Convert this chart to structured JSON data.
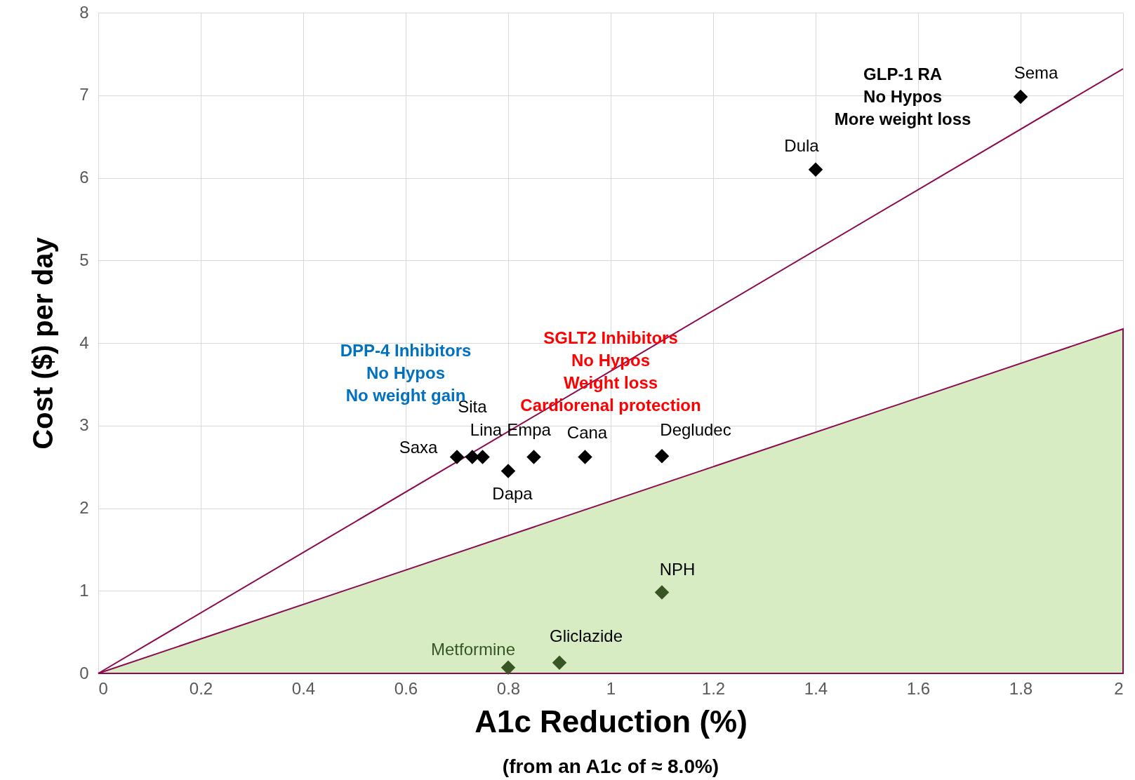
{
  "chart_data": {
    "type": "scatter",
    "xlabel": "A1c Reduction (%)",
    "ylabel": "Cost ($) per day",
    "xlim": [
      0,
      2
    ],
    "ylim": [
      0,
      8
    ],
    "xticks": [
      0,
      0.2,
      0.4,
      0.6,
      0.8,
      1,
      1.2,
      1.4,
      1.6,
      1.8,
      2
    ],
    "yticks": [
      0,
      1,
      2,
      3,
      4,
      5,
      6,
      7,
      8
    ],
    "grid": true,
    "series": [
      {
        "type": "area",
        "color": "#d8ecc4",
        "x": [
          0,
          2
        ],
        "values": [
          0,
          4.17
        ]
      },
      {
        "type": "line",
        "color": "#8b0a50",
        "x": [
          0,
          2
        ],
        "values": [
          0,
          7.32
        ]
      },
      {
        "marker": "diamond",
        "color": "#000000",
        "x": [
          1.8,
          1.4,
          0.73,
          0.75,
          0.7,
          0.85,
          0.8,
          0.95,
          1.1
        ],
        "values": [
          6.98,
          6.1,
          2.62,
          2.62,
          2.62,
          2.62,
          2.45,
          2.62,
          2.63
        ]
      },
      {
        "marker": "diamond",
        "color": "#375623",
        "x": [
          1.1,
          0.9,
          0.8
        ],
        "values": [
          0.98,
          0.13,
          0.07
        ]
      }
    ],
    "annotations": [
      {
        "text": "Sema",
        "x": 1.8,
        "y": 6.98
      },
      {
        "text": "Dula",
        "x": 1.4,
        "y": 6.1
      },
      {
        "text": "Sita",
        "x": 0.73,
        "y": 2.62
      },
      {
        "text": "Lina",
        "x": 0.75,
        "y": 2.62
      },
      {
        "text": "Saxa",
        "x": 0.7,
        "y": 2.62
      },
      {
        "text": "Empa",
        "x": 0.85,
        "y": 2.62
      },
      {
        "text": "Dapa",
        "x": 0.8,
        "y": 2.45
      },
      {
        "text": "Cana",
        "x": 0.95,
        "y": 2.62
      },
      {
        "text": "Degludec",
        "x": 1.1,
        "y": 2.63
      },
      {
        "text": "NPH",
        "x": 1.1,
        "y": 0.98
      },
      {
        "text": "Gliclazide",
        "x": 0.9,
        "y": 0.13
      },
      {
        "text": "Metformine",
        "x": 0.8,
        "y": 0.07
      },
      "GLP-1 RA\nNo Hypos\nMore weight loss",
      "DPP-4 Inhibitors\nNo Hypos\nNo weight gain",
      "SGLT2 Inhibitors\nNo Hypos\nWeight loss\nCardiorenal protection",
      "(from an A1c of ≈ 8.0%)"
    ]
  }
}
